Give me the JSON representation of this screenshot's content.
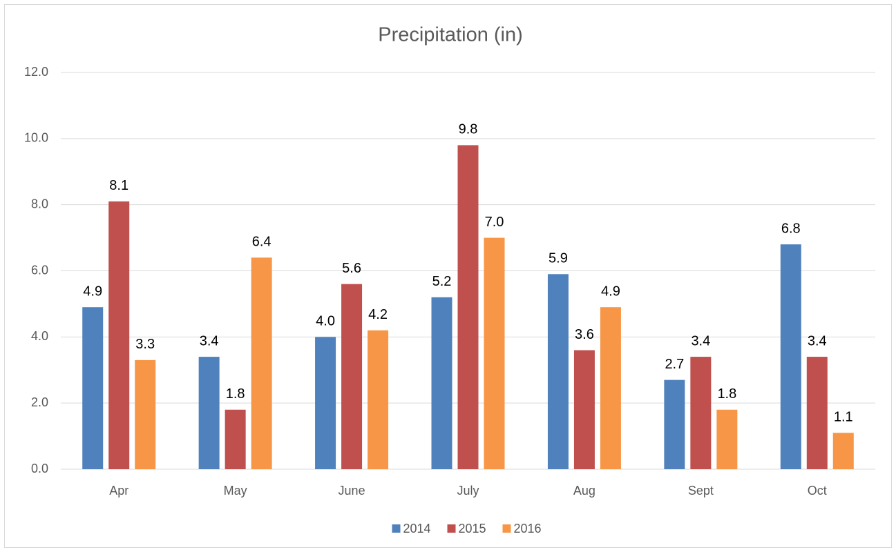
{
  "chart_data": {
    "type": "bar",
    "title": "Precipitation (in)",
    "categories": [
      "Apr",
      "May",
      "June",
      "July",
      "Aug",
      "Sept",
      "Oct"
    ],
    "series": [
      {
        "name": "2014",
        "color": "#4f81bd",
        "values": [
          4.9,
          3.4,
          4.0,
          5.2,
          5.9,
          2.7,
          6.8
        ],
        "value_labels": [
          "4.9",
          "3.4",
          "4.0",
          "5.2",
          "5.9",
          "2.7",
          "6.8"
        ]
      },
      {
        "name": "2015",
        "color": "#c0504d",
        "values": [
          8.1,
          1.8,
          5.6,
          9.8,
          3.6,
          3.4,
          3.4
        ],
        "value_labels": [
          "8.1",
          "1.8",
          "5.6",
          "9.8",
          "3.6",
          "3.4",
          "3.4"
        ]
      },
      {
        "name": "2016",
        "color": "#f79646",
        "values": [
          3.3,
          6.4,
          4.2,
          7.0,
          4.9,
          1.8,
          1.1
        ],
        "value_labels": [
          "3.3",
          "6.4",
          "4.2",
          "7.0",
          "4.9",
          "1.8",
          "1.1"
        ]
      }
    ],
    "ylim": [
      0,
      12
    ],
    "yticks": [
      {
        "value": 0,
        "label": "0.0"
      },
      {
        "value": 2,
        "label": "2.0"
      },
      {
        "value": 4,
        "label": "4.0"
      },
      {
        "value": 6,
        "label": "6.0"
      },
      {
        "value": 8,
        "label": "8.0"
      },
      {
        "value": 10,
        "label": "10.0"
      },
      {
        "value": 12,
        "label": "12.0"
      }
    ],
    "grid": true,
    "legend": "bottom"
  }
}
